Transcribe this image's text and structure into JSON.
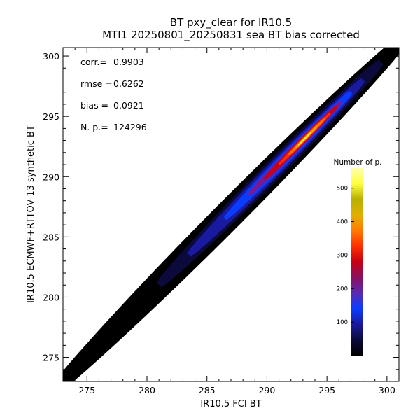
{
  "chart_data": {
    "type": "heatmap",
    "title": "BT pxy_clear for IR10.5",
    "subtitle": "MTI1 20250801_20250831 sea BT bias corrected",
    "xlabel": "IR10.5 FCI BT",
    "ylabel": "IR10.5 ECMWF+RTTOV-13 synthetic BT",
    "xlim": [
      273,
      301
    ],
    "ylim": [
      273,
      300.7
    ],
    "xticks": [
      275,
      280,
      285,
      290,
      295,
      300
    ],
    "yticks": [
      275,
      280,
      285,
      290,
      295,
      300
    ],
    "grid": false,
    "stats": [
      {
        "label": "corr.=",
        "value": "0.9903"
      },
      {
        "label": "rmse =",
        "value": "0.6262"
      },
      {
        "label": "bias =",
        "value": "0.0921"
      },
      {
        "label": "N. p.=",
        "value": "124296"
      }
    ],
    "colorbar": {
      "title": "Number of p.",
      "ticks": [
        100,
        200,
        300,
        400,
        500
      ],
      "range": [
        0,
        560
      ],
      "colors": [
        "#000000",
        "#0b0a3a",
        "#1a1aa0",
        "#0a3cff",
        "#5a2ab0",
        "#8a1060",
        "#c80010",
        "#ff3000",
        "#ff7a00",
        "#e0b000",
        "#b7b000",
        "#ffff40",
        "#ffffb0"
      ]
    },
    "density": {
      "description_only": false,
      "center_line": {
        "x": [
          273,
          301
        ],
        "y": [
          273,
          301
        ]
      },
      "peak": {
        "x": 293.0,
        "y": 293.1,
        "count": 540
      }
    }
  }
}
